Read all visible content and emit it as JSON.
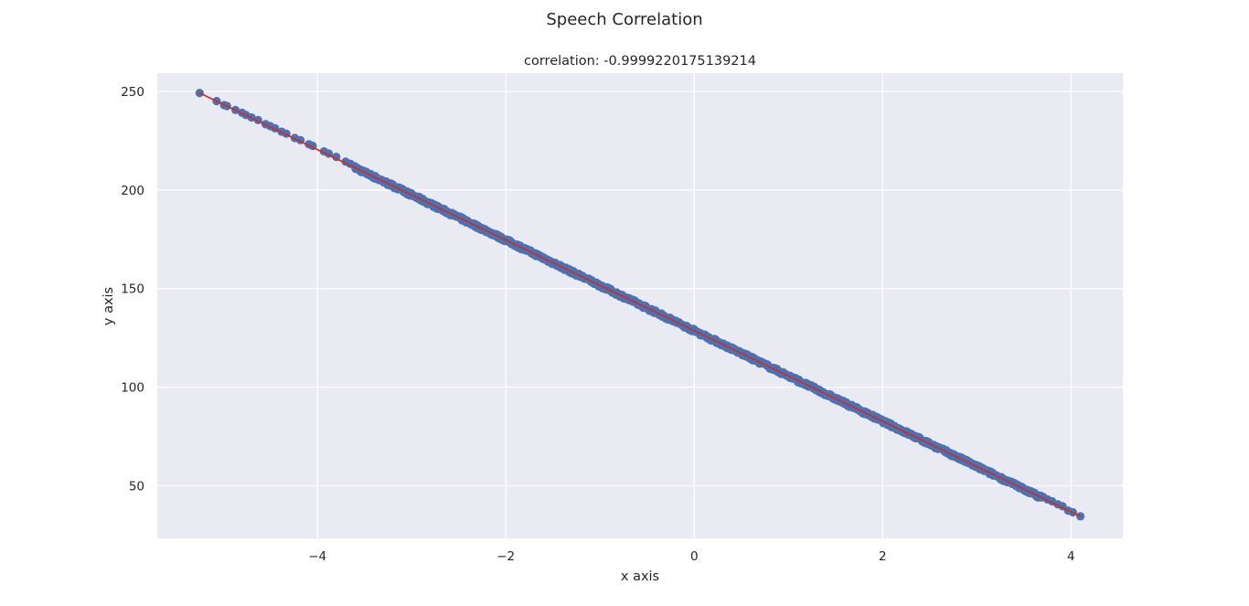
{
  "chart_data": {
    "type": "scatter",
    "title": "Speech Correlation",
    "subtitle": "correlation: -0.9999220175139214",
    "xlabel": "x axis",
    "ylabel": "y axis",
    "xlim": [
      -5.7,
      4.55
    ],
    "ylim": [
      23.3,
      259.3
    ],
    "xticks": [
      -4,
      -2,
      0,
      2,
      4
    ],
    "xtick_labels": [
      "−4",
      "−2",
      "0",
      "2",
      "4"
    ],
    "yticks": [
      50,
      100,
      150,
      200,
      250
    ],
    "ytick_labels": [
      "50",
      "100",
      "150",
      "200",
      "250"
    ],
    "grid": true,
    "fit_line": {
      "x": [
        -5.25,
        4.1
      ],
      "y": [
        249.2,
        34.5
      ],
      "color": "#d62728"
    },
    "point_color": "#4c72b0",
    "x_range": [
      -5.25,
      4.1
    ],
    "n_points_dense": 900,
    "sparse_points": [
      {
        "x": -5.25,
        "y": 249.2
      },
      {
        "x": -5.07,
        "y": 245.1
      },
      {
        "x": -4.99,
        "y": 243.1
      },
      {
        "x": -4.96,
        "y": 242.6
      },
      {
        "x": -4.87,
        "y": 240.6
      },
      {
        "x": -4.8,
        "y": 239.2
      },
      {
        "x": -4.76,
        "y": 238.1
      },
      {
        "x": -4.7,
        "y": 236.8
      },
      {
        "x": -4.63,
        "y": 235.5
      },
      {
        "x": -4.55,
        "y": 233.4
      },
      {
        "x": -4.5,
        "y": 232.4
      },
      {
        "x": -4.45,
        "y": 231.3
      },
      {
        "x": -4.38,
        "y": 229.6
      },
      {
        "x": -4.33,
        "y": 228.6
      },
      {
        "x": -4.24,
        "y": 226.4
      },
      {
        "x": -4.18,
        "y": 225.3
      },
      {
        "x": -4.09,
        "y": 223.2
      },
      {
        "x": -4.05,
        "y": 222.4
      },
      {
        "x": -3.93,
        "y": 219.6
      },
      {
        "x": -3.88,
        "y": 218.5
      },
      {
        "x": -3.8,
        "y": 216.8
      },
      {
        "x": -3.7,
        "y": 214.4
      },
      {
        "x": -3.65,
        "y": 213.3
      },
      {
        "x": 3.75,
        "y": 43.1
      },
      {
        "x": 3.8,
        "y": 42.1
      },
      {
        "x": 3.86,
        "y": 40.6
      },
      {
        "x": 3.91,
        "y": 39.6
      },
      {
        "x": 3.97,
        "y": 37.4
      },
      {
        "x": 4.02,
        "y": 36.5
      },
      {
        "x": 4.1,
        "y": 34.5
      }
    ]
  }
}
